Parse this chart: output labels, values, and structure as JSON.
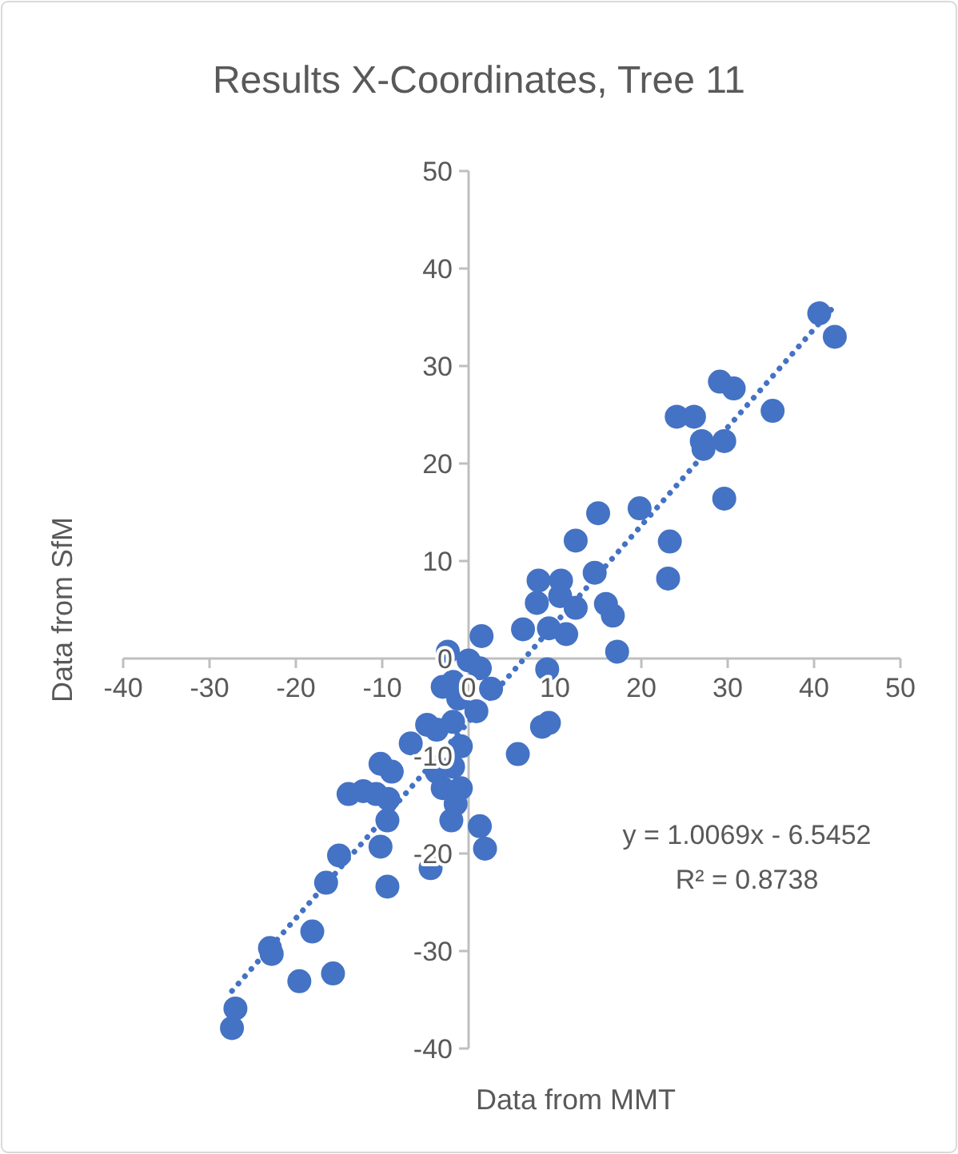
{
  "chart_data": {
    "type": "scatter",
    "title": "Results X-Coordinates, Tree 11",
    "xlabel": "Data from MMT",
    "ylabel": "Data from SfM",
    "xlim": [
      -40,
      50
    ],
    "ylim": [
      -40,
      50
    ],
    "xticks": [
      -40,
      -30,
      -20,
      -10,
      0,
      10,
      20,
      30,
      40,
      50
    ],
    "yticks": [
      -40,
      -30,
      -20,
      -10,
      0,
      10,
      20,
      30,
      40,
      50
    ],
    "grid": false,
    "legend": false,
    "marker": "circle",
    "annotations": [
      "y = 1.0069x - 6.5452",
      "R² = 0.8738"
    ],
    "series": [
      {
        "color": "#4472c4",
        "x": [
          40.6,
          42.4,
          29.1,
          30.7,
          35.2,
          24.1,
          26.1,
          27.0,
          27.2,
          29.6,
          29.6,
          15.0,
          19.8,
          12.4,
          23.3,
          23.1,
          14.6,
          8.1,
          10.7,
          7.9,
          10.6,
          12.4,
          15.9,
          16.7,
          6.3,
          9.3,
          11.3,
          1.5,
          17.2,
          9.1,
          8.5,
          9.3,
          5.7,
          -2.4,
          0,
          1.3,
          2.6,
          -3.0,
          -1.8,
          -1.2,
          0.9,
          -4.8,
          -3.7,
          -1.8,
          -6.7,
          -0.9,
          -3.7,
          -1.8,
          -0.9,
          -3.0,
          -1.5,
          -2.0,
          1.3,
          1.9,
          -4.4,
          -10.2,
          -8.9,
          -13.9,
          -12.2,
          -10.7,
          -9.3,
          -9.4,
          -10.2,
          -15.0,
          -16.5,
          -9.4,
          -18.1,
          -23.0,
          -22.8,
          -19.6,
          -15.7,
          -27.0,
          -27.4
        ],
        "values": [
          35.4,
          33.0,
          28.4,
          27.7,
          25.4,
          24.8,
          24.8,
          22.3,
          21.5,
          22.3,
          16.4,
          14.9,
          15.4,
          12.1,
          12.0,
          8.2,
          8.8,
          8.0,
          8.0,
          5.7,
          6.4,
          5.2,
          5.6,
          4.4,
          3.0,
          3.1,
          2.5,
          2.3,
          0.7,
          -1.1,
          -7.0,
          -6.6,
          -9.8,
          0.7,
          -0.2,
          -1.0,
          -3.1,
          -2.9,
          -2.4,
          -4.1,
          -5.4,
          -6.8,
          -7.3,
          -6.5,
          -8.7,
          -9.0,
          -11.6,
          -11.1,
          -13.3,
          -13.3,
          -14.9,
          -16.6,
          -17.2,
          -19.5,
          -21.5,
          -10.8,
          -11.6,
          -13.9,
          -13.6,
          -13.9,
          -14.4,
          -16.6,
          -19.3,
          -20.2,
          -23.0,
          -23.4,
          -28.0,
          -29.7,
          -30.3,
          -33.1,
          -32.3,
          -35.9,
          -37.9
        ]
      },
      {
        "type": "line",
        "color": "#4472c4",
        "marker": "none",
        "line_style": "dotted",
        "x": [
          -27.4,
          42.4
        ],
        "values": [
          -34.1,
          36.2
        ]
      }
    ]
  }
}
